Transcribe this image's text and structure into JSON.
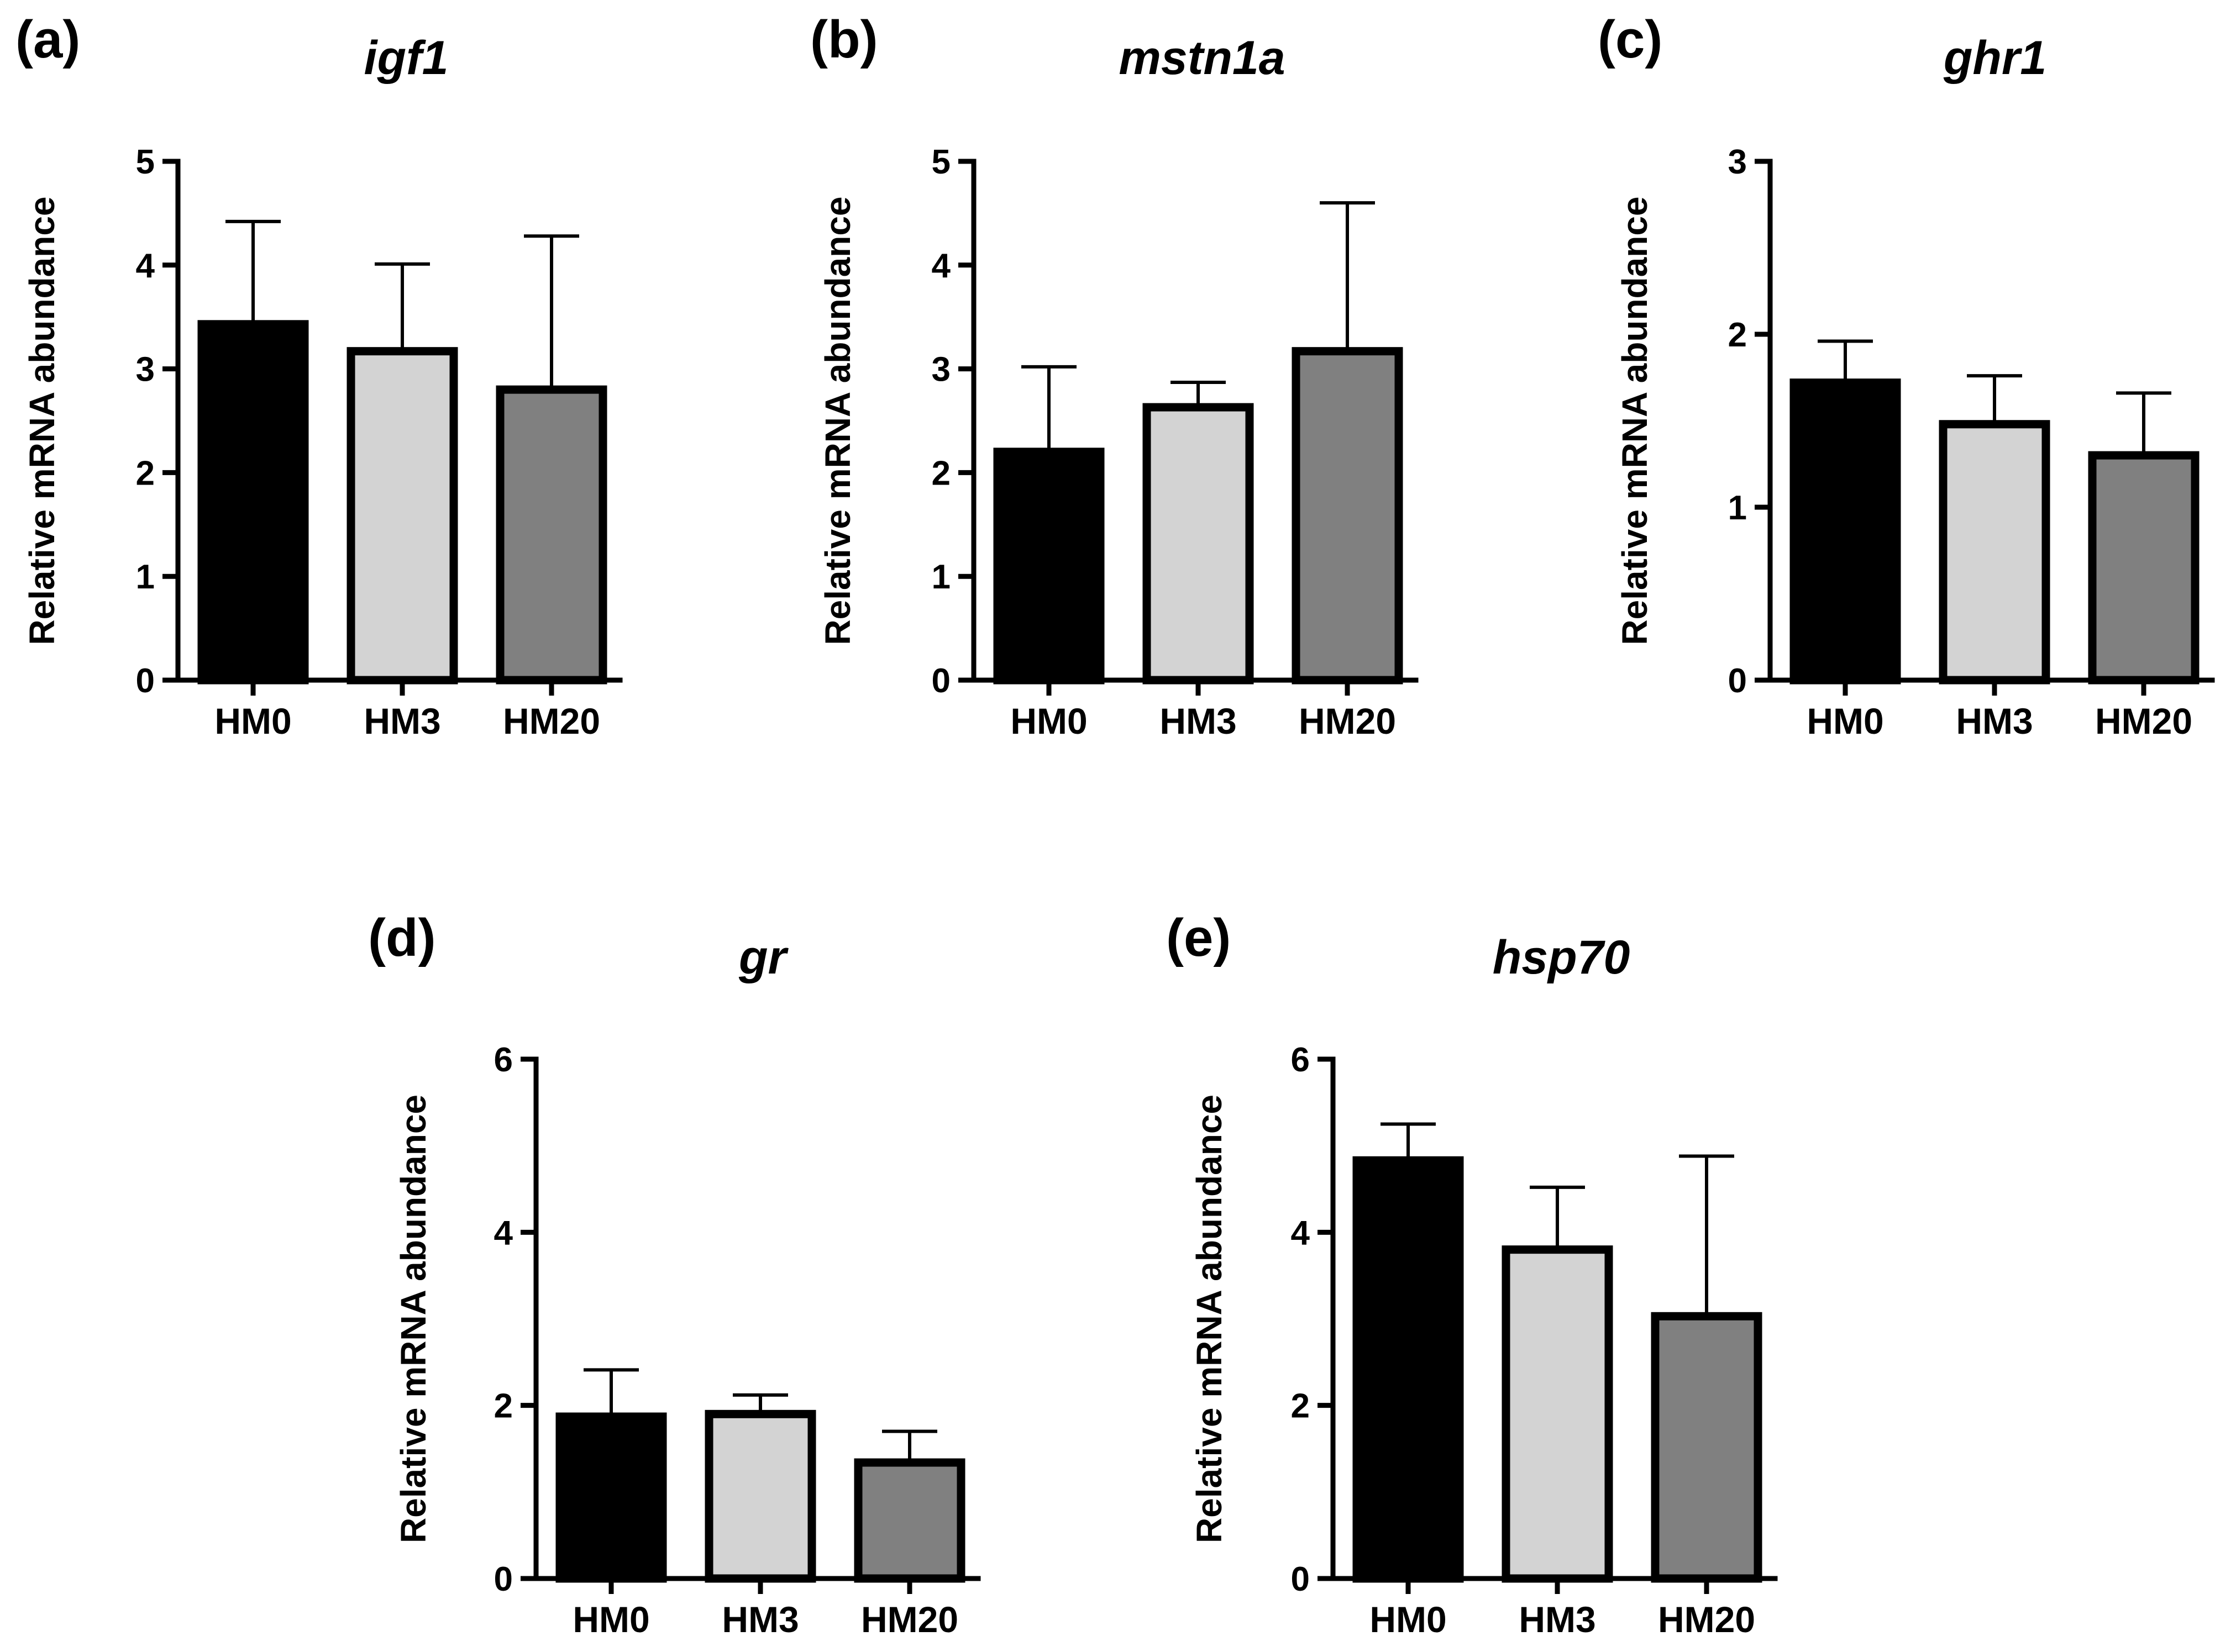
{
  "figure": {
    "colors": {
      "HM0": "#000000",
      "HM3": "#d3d3d3",
      "HM20": "#808080"
    }
  },
  "chart_data": [
    {
      "panel": "(a)",
      "type": "bar",
      "title": "igf1",
      "ylabel": "Relative mRNA abundance",
      "xlabel": "",
      "categories": [
        "HM0",
        "HM3",
        "HM20"
      ],
      "values": [
        3.43,
        3.17,
        2.8
      ],
      "error_upper": [
        4.42,
        4.01,
        4.28
      ],
      "ylim": [
        0,
        5
      ],
      "yticks": [
        0,
        1,
        2,
        3,
        4,
        5
      ]
    },
    {
      "panel": "(b)",
      "type": "bar",
      "title": "mstn1a",
      "ylabel": "Relative mRNA abundance",
      "xlabel": "",
      "categories": [
        "HM0",
        "HM3",
        "HM20"
      ],
      "values": [
        2.2,
        2.63,
        3.17
      ],
      "error_upper": [
        3.02,
        2.87,
        4.6
      ],
      "ylim": [
        0,
        5
      ],
      "yticks": [
        0,
        1,
        2,
        3,
        4,
        5
      ]
    },
    {
      "panel": "(c)",
      "type": "bar",
      "title": "ghr1",
      "ylabel": "Relative mRNA abundance",
      "xlabel": "",
      "categories": [
        "HM0",
        "HM3",
        "HM20"
      ],
      "values": [
        1.72,
        1.48,
        1.3
      ],
      "error_upper": [
        1.96,
        1.76,
        1.66
      ],
      "ylim": [
        0,
        3
      ],
      "yticks": [
        0,
        1,
        2,
        3
      ]
    },
    {
      "panel": "(d)",
      "type": "bar",
      "title": "gr",
      "ylabel": "Relative mRNA abundance",
      "xlabel": "",
      "categories": [
        "HM0",
        "HM3",
        "HM20"
      ],
      "values": [
        1.87,
        1.9,
        1.34
      ],
      "error_upper": [
        2.41,
        2.12,
        1.7
      ],
      "ylim": [
        0,
        6
      ],
      "yticks": [
        0,
        2,
        4,
        6
      ]
    },
    {
      "panel": "(e)",
      "type": "bar",
      "title": "hsp70",
      "ylabel": "Relative mRNA abundance",
      "xlabel": "",
      "categories": [
        "HM0",
        "HM3",
        "HM20"
      ],
      "values": [
        4.83,
        3.8,
        3.03
      ],
      "error_upper": [
        5.25,
        4.52,
        4.88
      ],
      "ylim": [
        0,
        6
      ],
      "yticks": [
        0,
        2,
        4,
        6
      ]
    }
  ]
}
